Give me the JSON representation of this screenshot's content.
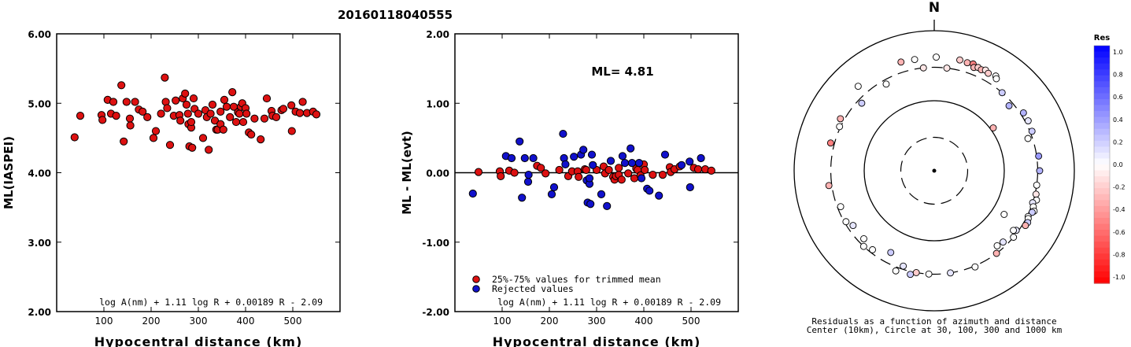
{
  "title": "20160118040555",
  "chart_data": [
    {
      "type": "scatter",
      "xlabel": "Hypocentral distance (km)",
      "ylabel": "ML(IASPEI)",
      "xlim": [
        0,
        600
      ],
      "ylim": [
        2,
        6
      ],
      "xticks": [
        100,
        200,
        300,
        400,
        500
      ],
      "yticks": [
        2,
        3,
        4,
        5,
        6
      ],
      "ytick_labels": [
        "2.00",
        "3.00",
        "4.00",
        "5.00",
        "6.00"
      ],
      "formula": "log A(nm) + 1.11 log R + 0.00189 R - 2.09",
      "colors": {
        "point": "#dd1111"
      },
      "points": [
        [
          38,
          4.51
        ],
        [
          50,
          4.82
        ],
        [
          95,
          4.83
        ],
        [
          97,
          4.76
        ],
        [
          108,
          5.05
        ],
        [
          115,
          4.85
        ],
        [
          120,
          5.02
        ],
        [
          126,
          4.82
        ],
        [
          137,
          5.26
        ],
        [
          142,
          4.45
        ],
        [
          148,
          5.02
        ],
        [
          155,
          4.78
        ],
        [
          156,
          4.68
        ],
        [
          166,
          5.02
        ],
        [
          174,
          4.91
        ],
        [
          182,
          4.88
        ],
        [
          192,
          4.8
        ],
        [
          205,
          4.5
        ],
        [
          210,
          4.6
        ],
        [
          221,
          4.85
        ],
        [
          229,
          5.37
        ],
        [
          231,
          5.02
        ],
        [
          234,
          4.93
        ],
        [
          240,
          4.4
        ],
        [
          248,
          4.82
        ],
        [
          252,
          5.04
        ],
        [
          260,
          4.83
        ],
        [
          262,
          4.75
        ],
        [
          267,
          5.07
        ],
        [
          272,
          5.14
        ],
        [
          275,
          4.98
        ],
        [
          278,
          4.85
        ],
        [
          279,
          4.7
        ],
        [
          281,
          4.38
        ],
        [
          285,
          4.65
        ],
        [
          285,
          4.73
        ],
        [
          287,
          4.36
        ],
        [
          290,
          5.07
        ],
        [
          292,
          4.92
        ],
        [
          300,
          4.85
        ],
        [
          310,
          4.5
        ],
        [
          315,
          4.9
        ],
        [
          318,
          4.8
        ],
        [
          322,
          4.33
        ],
        [
          326,
          4.85
        ],
        [
          330,
          4.98
        ],
        [
          335,
          4.75
        ],
        [
          338,
          4.62
        ],
        [
          341,
          4.62
        ],
        [
          347,
          4.7
        ],
        [
          347,
          4.88
        ],
        [
          353,
          4.62
        ],
        [
          355,
          5.05
        ],
        [
          360,
          4.95
        ],
        [
          367,
          4.8
        ],
        [
          372,
          5.16
        ],
        [
          375,
          4.95
        ],
        [
          380,
          4.73
        ],
        [
          384,
          4.87
        ],
        [
          387,
          4.85
        ],
        [
          390,
          4.95
        ],
        [
          393,
          5.0
        ],
        [
          395,
          4.73
        ],
        [
          400,
          4.93
        ],
        [
          402,
          4.85
        ],
        [
          407,
          4.58
        ],
        [
          412,
          4.55
        ],
        [
          419,
          4.78
        ],
        [
          432,
          4.48
        ],
        [
          440,
          4.78
        ],
        [
          445,
          5.07
        ],
        [
          455,
          4.89
        ],
        [
          457,
          4.82
        ],
        [
          465,
          4.8
        ],
        [
          476,
          4.9
        ],
        [
          480,
          4.92
        ],
        [
          497,
          4.97
        ],
        [
          498,
          4.6
        ],
        [
          506,
          4.88
        ],
        [
          515,
          4.86
        ],
        [
          521,
          5.02
        ],
        [
          530,
          4.86
        ],
        [
          543,
          4.88
        ],
        [
          550,
          4.84
        ]
      ]
    },
    {
      "type": "scatter",
      "xlabel": "Hypocentral distance (km)",
      "ylabel": "ML - ML(evt)",
      "xlim": [
        0,
        600
      ],
      "ylim": [
        -2,
        2
      ],
      "xticks": [
        100,
        200,
        300,
        400,
        500
      ],
      "yticks": [
        -2,
        -1,
        0,
        1,
        2
      ],
      "ytick_labels": [
        "-2.00",
        "-1.00",
        "0.00",
        "1.00",
        "2.00"
      ],
      "annotation": "ML= 4.81",
      "formula": "log A(nm) + 1.11 log R + 0.00189 R - 2.09",
      "legend": [
        "25%-75% values for trimmed mean",
        "Rejected values"
      ],
      "colors": {
        "trimmed": "#dd1111",
        "rejected": "#1111cc"
      },
      "series": [
        {
          "name": "25%-75% values for trimmed mean",
          "points": [
            [
              50,
              0.01
            ],
            [
              95,
              0.02
            ],
            [
              97,
              -0.05
            ],
            [
              115,
              0.03
            ],
            [
              126,
              0.0
            ],
            [
              174,
              0.1
            ],
            [
              182,
              0.07
            ],
            [
              192,
              -0.01
            ],
            [
              221,
              0.04
            ],
            [
              240,
              -0.05
            ],
            [
              248,
              0.02
            ],
            [
              260,
              0.02
            ],
            [
              262,
              -0.06
            ],
            [
              275,
              0.05
            ],
            [
              278,
              0.04
            ],
            [
              300,
              0.04
            ],
            [
              315,
              0.09
            ],
            [
              318,
              -0.01
            ],
            [
              326,
              0.04
            ],
            [
              335,
              -0.06
            ],
            [
              338,
              -0.1
            ],
            [
              341,
              -0.05
            ],
            [
              347,
              -0.03
            ],
            [
              347,
              0.07
            ],
            [
              353,
              -0.1
            ],
            [
              367,
              -0.01
            ],
            [
              380,
              -0.08
            ],
            [
              384,
              0.06
            ],
            [
              387,
              0.04
            ],
            [
              393,
              -0.04
            ],
            [
              400,
              0.12
            ],
            [
              402,
              0.04
            ],
            [
              419,
              -0.03
            ],
            [
              440,
              -0.03
            ],
            [
              455,
              0.08
            ],
            [
              457,
              0.01
            ],
            [
              465,
              0.05
            ],
            [
              476,
              0.09
            ],
            [
              506,
              0.07
            ],
            [
              515,
              0.05
            ],
            [
              530,
              0.05
            ],
            [
              543,
              0.03
            ]
          ]
        },
        {
          "name": "Rejected values",
          "points": [
            [
              38,
              -0.3
            ],
            [
              108,
              0.24
            ],
            [
              120,
              0.21
            ],
            [
              137,
              0.45
            ],
            [
              142,
              -0.36
            ],
            [
              148,
              0.21
            ],
            [
              155,
              -0.13
            ],
            [
              156,
              -0.03
            ],
            [
              166,
              0.21
            ],
            [
              205,
              -0.31
            ],
            [
              210,
              -0.21
            ],
            [
              229,
              0.56
            ],
            [
              231,
              0.21
            ],
            [
              234,
              0.12
            ],
            [
              252,
              0.23
            ],
            [
              267,
              0.26
            ],
            [
              272,
              0.33
            ],
            [
              279,
              -0.11
            ],
            [
              281,
              -0.43
            ],
            [
              285,
              -0.16
            ],
            [
              285,
              -0.08
            ],
            [
              287,
              -0.45
            ],
            [
              290,
              0.26
            ],
            [
              292,
              0.11
            ],
            [
              310,
              -0.31
            ],
            [
              322,
              -0.48
            ],
            [
              330,
              0.17
            ],
            [
              355,
              0.24
            ],
            [
              360,
              0.14
            ],
            [
              372,
              0.35
            ],
            [
              375,
              0.14
            ],
            [
              390,
              0.14
            ],
            [
              395,
              -0.08
            ],
            [
              407,
              -0.23
            ],
            [
              412,
              -0.26
            ],
            [
              432,
              -0.33
            ],
            [
              445,
              0.26
            ],
            [
              480,
              0.11
            ],
            [
              497,
              0.16
            ],
            [
              498,
              -0.21
            ],
            [
              521,
              0.21
            ]
          ]
        }
      ]
    },
    {
      "type": "scatter",
      "subtype": "polar",
      "north_label": "N",
      "caption_lines": [
        "Residuals as a function of azimuth and distance",
        "Center (10km), Circle at 30, 100, 300 and 1000 km"
      ],
      "colorbar": {
        "title": "Res",
        "tick_labels": [
          "1.0",
          "0.8",
          "0.6",
          "0.4",
          "0.2",
          "0.0",
          "-0.2",
          "-0.4",
          "-0.6",
          "-0.8",
          "-1.0"
        ],
        "max_color": "#0000ff",
        "zero_color": "#ffffff",
        "min_color": "#ff0000"
      },
      "stations": [
        {
          "az": 313,
          "d": 260,
          "res": 0.2
        },
        {
          "az": 318,
          "d": 420,
          "res": 0.0
        },
        {
          "az": 331,
          "d": 260,
          "res": 0.0
        },
        {
          "az": 343,
          "d": 420,
          "res": -0.3
        },
        {
          "az": 350,
          "d": 410,
          "res": 0.0
        },
        {
          "az": 354,
          "d": 300,
          "res": -0.1
        },
        {
          "az": 1,
          "d": 420,
          "res": 0.0
        },
        {
          "az": 7,
          "d": 300,
          "res": -0.1
        },
        {
          "az": 13,
          "d": 420,
          "res": -0.2
        },
        {
          "az": 17,
          "d": 410,
          "res": -0.3
        },
        {
          "az": 20,
          "d": 420,
          "res": -0.5
        },
        {
          "az": 21,
          "d": 380,
          "res": -0.3
        },
        {
          "az": 23,
          "d": 400,
          "res": -0.2
        },
        {
          "az": 25,
          "d": 390,
          "res": -0.3
        },
        {
          "az": 27,
          "d": 410,
          "res": -0.1
        },
        {
          "az": 29,
          "d": 390,
          "res": -0.2
        },
        {
          "az": 33,
          "d": 410,
          "res": 0.0
        },
        {
          "az": 34,
          "d": 385,
          "res": 0.0
        },
        {
          "az": 41,
          "d": 300,
          "res": 0.2
        },
        {
          "az": 49,
          "d": 260,
          "res": 0.3
        },
        {
          "az": 57,
          "d": 330,
          "res": 0.3
        },
        {
          "az": 62,
          "d": 330,
          "res": 0.1
        },
        {
          "az": 68,
          "d": 320,
          "res": 0.2
        },
        {
          "az": 71,
          "d": 260,
          "res": 0.0
        },
        {
          "az": 82,
          "d": 320,
          "res": 0.4
        },
        {
          "az": 90,
          "d": 320,
          "res": 0.3
        },
        {
          "az": 98,
          "d": 300,
          "res": 0.0
        },
        {
          "az": 103,
          "d": 310,
          "res": -0.1
        },
        {
          "az": 106,
          "d": 330,
          "res": 0.0
        },
        {
          "az": 108,
          "d": 300,
          "res": 0.1
        },
        {
          "az": 110,
          "d": 320,
          "res": 0.0
        },
        {
          "az": 112,
          "d": 345,
          "res": 0.0
        },
        {
          "az": 113,
          "d": 330,
          "res": 0.2
        },
        {
          "az": 116,
          "d": 310,
          "res": 0.0
        },
        {
          "az": 117,
          "d": 320,
          "res": 0.0
        },
        {
          "az": 119,
          "d": 335,
          "res": 0.2
        },
        {
          "az": 121,
          "d": 330,
          "res": -0.3
        },
        {
          "az": 122,
          "d": 150,
          "res": 0.0
        },
        {
          "az": 126,
          "d": 280,
          "res": 0.1
        },
        {
          "az": 127,
          "d": 260,
          "res": 0.0
        },
        {
          "az": 130,
          "d": 300,
          "res": 0.0
        },
        {
          "az": 136,
          "d": 260,
          "res": 0.1
        },
        {
          "az": 140,
          "d": 250,
          "res": 0.0
        },
        {
          "az": 143,
          "d": 300,
          "res": -0.3
        },
        {
          "az": 157,
          "d": 310,
          "res": 0.0
        },
        {
          "az": 171,
          "d": 300,
          "res": 0.1
        },
        {
          "az": 183,
          "d": 300,
          "res": 0.0
        },
        {
          "az": 190,
          "d": 300,
          "res": -0.2
        },
        {
          "az": 193,
          "d": 330,
          "res": 0.2
        },
        {
          "az": 198,
          "d": 270,
          "res": 0.1
        },
        {
          "az": 201,
          "d": 340,
          "res": 0.0
        },
        {
          "az": 208,
          "d": 210,
          "res": 0.2
        },
        {
          "az": 218,
          "d": 270,
          "res": 0.0
        },
        {
          "az": 223,
          "d": 300,
          "res": 0.0
        },
        {
          "az": 226,
          "d": 250,
          "res": 0.0
        },
        {
          "az": 236,
          "d": 250,
          "res": 0.1
        },
        {
          "az": 240,
          "d": 285,
          "res": 0.0
        },
        {
          "az": 249,
          "d": 270,
          "res": 0.0
        },
        {
          "az": 262,
          "d": 330,
          "res": -0.3
        },
        {
          "az": 285,
          "d": 340,
          "res": -0.5
        },
        {
          "az": 295,
          "d": 310,
          "res": 0.0
        },
        {
          "az": 299,
          "d": 340,
          "res": -0.3
        },
        {
          "az": 54,
          "d": 110,
          "res": -0.3
        }
      ]
    }
  ]
}
